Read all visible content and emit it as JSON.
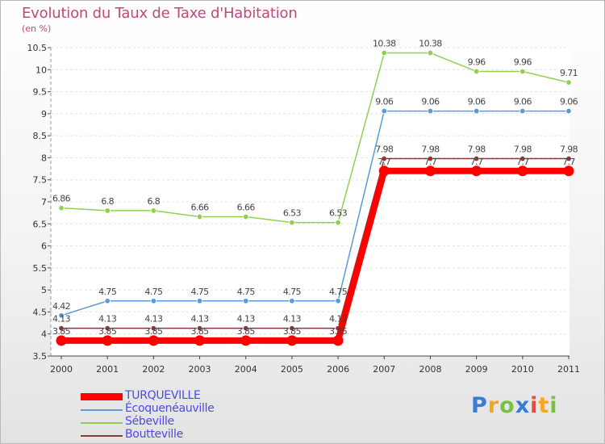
{
  "chart_data": {
    "type": "line",
    "title": "Evolution du Taux de Taxe d'Habitation",
    "subtitle": "(en %)",
    "xlabel": "",
    "ylabel": "",
    "ylim": [
      3.5,
      10.5
    ],
    "y_ticks": [
      "3.5",
      "4",
      "4.5",
      "5",
      "5.5",
      "6",
      "6.5",
      "7",
      "7.5",
      "8",
      "8.5",
      "9",
      "9.5",
      "10",
      "10.5"
    ],
    "categories": [
      "2000",
      "2001",
      "2002",
      "2003",
      "2004",
      "2005",
      "2006",
      "2007",
      "2008",
      "2009",
      "2010",
      "2011"
    ],
    "series": [
      {
        "name": "TURQUEVILLE",
        "color": "#ff0000",
        "values": [
          3.85,
          3.85,
          3.85,
          3.85,
          3.85,
          3.85,
          3.85,
          7.7,
          7.7,
          7.7,
          7.7,
          7.7
        ],
        "labels": [
          "3.85",
          "3.85",
          "3.85",
          "3.85",
          "3.85",
          "3.85",
          "3.85",
          "7.7",
          "7.7",
          "7.7",
          "7.7",
          "7.7"
        ]
      },
      {
        "name": "Écoquenéauville",
        "color": "#5b9bd5",
        "values": [
          4.42,
          4.75,
          4.75,
          4.75,
          4.75,
          4.75,
          4.75,
          9.06,
          9.06,
          9.06,
          9.06,
          9.06
        ],
        "labels": [
          "4.42",
          "4.75",
          "4.75",
          "4.75",
          "4.75",
          "4.75",
          "4.75",
          "9.06",
          "9.06",
          "9.06",
          "9.06",
          "9.06"
        ]
      },
      {
        "name": "Sébeville",
        "color": "#8fd14f",
        "values": [
          6.86,
          6.8,
          6.8,
          6.66,
          6.66,
          6.53,
          6.53,
          10.38,
          10.38,
          9.96,
          9.96,
          9.71
        ],
        "labels": [
          "6.86",
          "6.8",
          "6.8",
          "6.66",
          "6.66",
          "6.53",
          "6.53",
          "10.38",
          "10.38",
          "9.96",
          "9.96",
          "9.71"
        ]
      },
      {
        "name": "Boutteville",
        "color": "#8b3a3a",
        "values": [
          4.13,
          4.13,
          4.13,
          4.13,
          4.13,
          4.13,
          4.13,
          7.98,
          7.98,
          7.98,
          7.98,
          7.98
        ],
        "labels": [
          "4.13",
          "4.13",
          "4.13",
          "4.13",
          "4.13",
          "4.13",
          "4.13",
          "7.98",
          "7.98",
          "7.98",
          "7.98",
          "7.98"
        ]
      }
    ]
  },
  "legend": {
    "items": [
      {
        "label": "TURQUEVILLE",
        "color": "#ff0000"
      },
      {
        "label": "Écoquenéauville",
        "color": "#5b9bd5"
      },
      {
        "label": "Sébeville",
        "color": "#8fd14f"
      },
      {
        "label": "Boutteville",
        "color": "#8b3a3a"
      }
    ]
  },
  "logo": {
    "letters": [
      "P",
      "r",
      "o",
      "x",
      "i",
      "t",
      "i"
    ],
    "colors": [
      "#3a7bd5",
      "#f5a623",
      "#7ac143",
      "#3a7bd5",
      "#e64b3c",
      "#f5a623",
      "#7ac143"
    ]
  }
}
